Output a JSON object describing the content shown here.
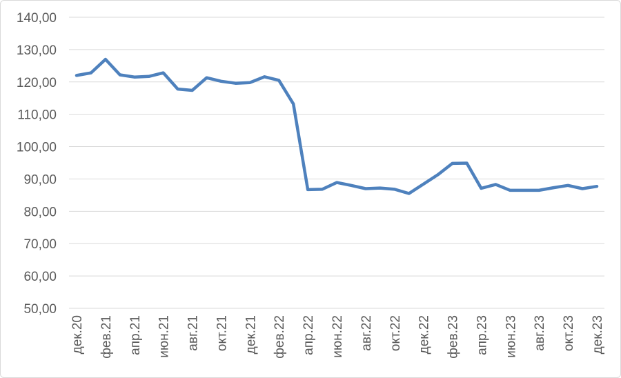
{
  "chart_data": {
    "type": "line",
    "title": "",
    "xlabel": "",
    "ylabel": "",
    "ylim": [
      50,
      140
    ],
    "y_ticks": [
      "50,00",
      "60,00",
      "70,00",
      "80,00",
      "90,00",
      "100,00",
      "110,00",
      "120,00",
      "130,00",
      "140,00"
    ],
    "grid": true,
    "legend": "none",
    "color": "#4e81bd",
    "x": [
      "дек.20",
      "янв.21",
      "фев.21",
      "мар.21",
      "апр.21",
      "май.21",
      "июн.21",
      "июл.21",
      "авг.21",
      "сен.21",
      "окт.21",
      "ноя.21",
      "дек.21",
      "янв.22",
      "фев.22",
      "мар.22",
      "апр.22",
      "май.22",
      "июн.22",
      "июл.22",
      "авг.22",
      "сен.22",
      "окт.22",
      "ноя.22",
      "дек.22",
      "янв.23",
      "фев.23",
      "мар.23",
      "апр.23",
      "май.23",
      "июн.23",
      "июл.23",
      "авг.23",
      "сен.23",
      "окт.23",
      "ноя.23",
      "дек.23"
    ],
    "x_tick_labels": [
      "дек.20",
      "фев.21",
      "апр.21",
      "июн.21",
      "авг.21",
      "окт.21",
      "дек.21",
      "фев.22",
      "апр.22",
      "июн.22",
      "авг.22",
      "окт.22",
      "дек.22",
      "фев.23",
      "апр.23",
      "июн.23",
      "авг.23",
      "окт.23",
      "дек.23"
    ],
    "values": [
      122.0,
      122.8,
      127.0,
      122.2,
      121.5,
      121.7,
      122.8,
      117.8,
      117.4,
      121.3,
      120.2,
      119.6,
      119.8,
      121.6,
      120.5,
      113.2,
      86.7,
      86.8,
      88.9,
      88.0,
      87.0,
      87.2,
      86.8,
      85.5,
      88.4,
      91.3,
      94.8,
      94.9,
      87.1,
      88.3,
      86.5,
      86.5,
      86.5,
      87.3,
      88.0,
      87.0,
      87.7
    ]
  }
}
